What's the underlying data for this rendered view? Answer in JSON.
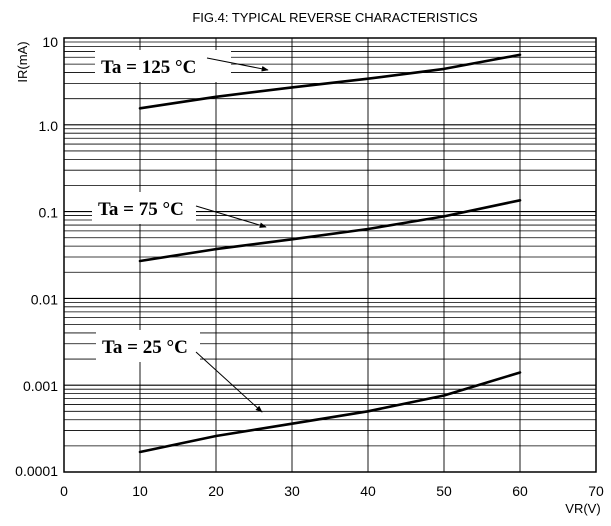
{
  "chart_data": {
    "type": "line",
    "title": "FIG.4: TYPICAL REVERSE CHARACTERISTICS",
    "xlabel": "VR(V)",
    "ylabel": "IR(mA)",
    "xlim": [
      0,
      70
    ],
    "ylim": [
      0.0001,
      10
    ],
    "y_scale": "log",
    "grid": true,
    "x_ticks": [
      0,
      10,
      20,
      30,
      40,
      50,
      60,
      70
    ],
    "x_tick_labels": [
      "0",
      "10",
      "20",
      "30",
      "40",
      "50",
      "60",
      "70"
    ],
    "y_ticks": [
      10,
      1,
      0.1,
      0.01,
      0.001,
      0.0001
    ],
    "y_tick_labels": [
      "10",
      "1.0",
      "0.1",
      "0.01",
      "0.001",
      "0.0001"
    ],
    "series": [
      {
        "name": "Ta = 125°C",
        "x": [
          10,
          20,
          30,
          40,
          50,
          60
        ],
        "y": [
          1.55,
          2.1,
          2.7,
          3.4,
          4.4,
          6.4
        ]
      },
      {
        "name": "Ta = 75°C",
        "x": [
          10,
          20,
          30,
          40,
          50,
          60
        ],
        "y": [
          0.027,
          0.037,
          0.048,
          0.063,
          0.088,
          0.135
        ]
      },
      {
        "name": "Ta = 25°C",
        "x": [
          10,
          20,
          30,
          40,
          50,
          60
        ],
        "y": [
          0.00017,
          0.00026,
          0.00036,
          0.0005,
          0.00076,
          0.0014
        ]
      }
    ],
    "annotations": [
      {
        "label": "Ta = 125",
        "unit": "°C",
        "series": 0
      },
      {
        "label": "Ta = 75",
        "unit": "°C",
        "series": 1
      },
      {
        "label": "Ta = 25",
        "unit": "°C",
        "series": 2
      }
    ]
  }
}
